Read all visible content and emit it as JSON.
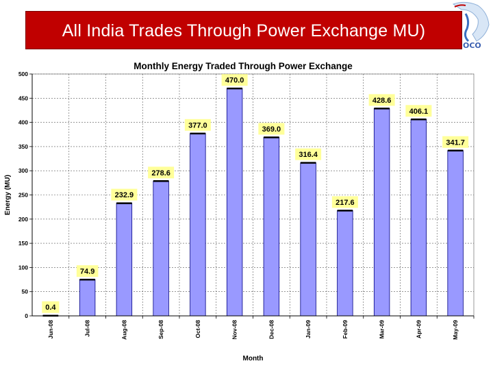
{
  "header": {
    "title": "All India Trades Through Power Exchange MU)",
    "logo_text": "OCO",
    "accent_color": "#c00000"
  },
  "chart_data": {
    "type": "bar",
    "title": "Monthly Energy Traded Through Power Exchange",
    "xlabel": "Month",
    "ylabel": "Energy (MU)",
    "categories": [
      "Jun-08",
      "Jul-08",
      "Aug-08",
      "Sep-08",
      "Oct-08",
      "Nov-08",
      "Dec-08",
      "Jan-09",
      "Feb-09",
      "Mar-09",
      "Apr-09",
      "May-09"
    ],
    "values": [
      0.4,
      74.9,
      232.9,
      278.6,
      377.0,
      470.0,
      369.0,
      316.4,
      217.6,
      428.6,
      406.1,
      341.7
    ],
    "value_labels": [
      "0.4",
      "74.9",
      "232.9",
      "278.6",
      "377.0",
      "470.0",
      "369.0",
      "316.4",
      "217.6",
      "428.6",
      "406.1",
      "341.7"
    ],
    "ylim": [
      0,
      500
    ],
    "yticks": [
      0,
      50,
      100,
      150,
      200,
      250,
      300,
      350,
      400,
      450,
      500
    ],
    "grid": true,
    "bar_color": "#9999ff",
    "label_box_color": "#ffff99"
  }
}
